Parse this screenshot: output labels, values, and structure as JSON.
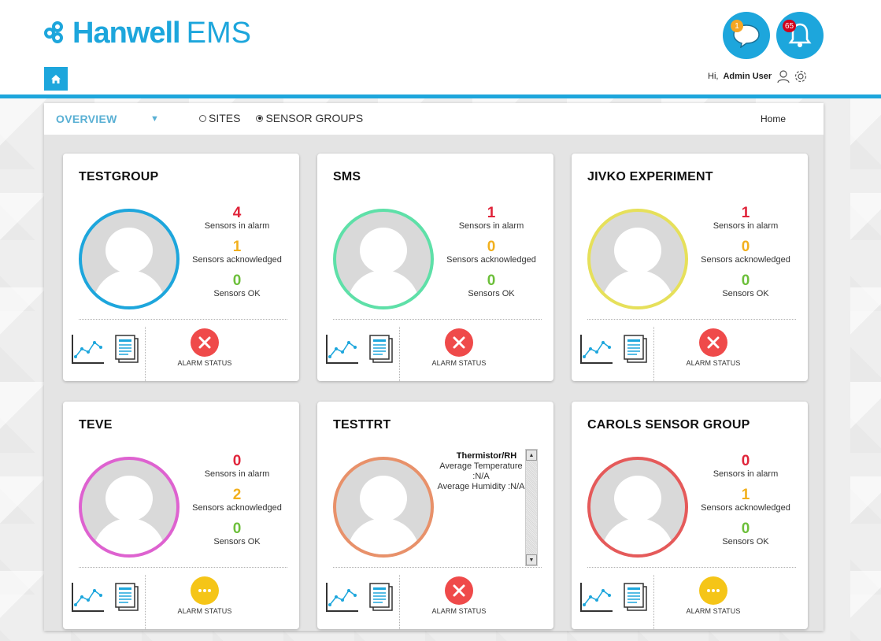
{
  "app": {
    "brand_bold": "Hanwell",
    "brand_light": "EMS"
  },
  "header": {
    "messages_count": "1",
    "alarms_count": "65",
    "greeting": "Hi,",
    "user_name": "Admin User"
  },
  "toolbar": {
    "overview_label": "OVERVIEW",
    "radio_sites": "SITES",
    "radio_sensor_groups": "SENSOR GROUPS",
    "selected_radio": "SENSOR GROUPS",
    "breadcrumb": "Home"
  },
  "labels": {
    "in_alarm": "Sensors in alarm",
    "acknowledged": "Sensors acknowledged",
    "ok": "Sensors OK",
    "alarm_status": "ALARM STATUS"
  },
  "colors": {
    "accent": "#1da6dc",
    "alarm_red": "#e0243a",
    "ack_yellow": "#f2b01d",
    "ok_green": "#6cbf3a"
  },
  "groups": [
    {
      "title": "TESTGROUP",
      "ring_color": "#1da6dc",
      "in_alarm": "4",
      "acknowledged": "1",
      "ok": "0",
      "alarm_status": "alarm",
      "status_icon": "close-icon"
    },
    {
      "title": "SMS",
      "ring_color": "#5ee0a8",
      "in_alarm": "1",
      "acknowledged": "0",
      "ok": "0",
      "alarm_status": "alarm",
      "status_icon": "close-icon"
    },
    {
      "title": "JIVKO EXPERIMENT",
      "ring_color": "#e6e05a",
      "in_alarm": "1",
      "acknowledged": "0",
      "ok": "0",
      "alarm_status": "alarm",
      "status_icon": "close-icon"
    },
    {
      "title": "TEVE",
      "ring_color": "#de62d0",
      "in_alarm": "0",
      "acknowledged": "2",
      "ok": "0",
      "alarm_status": "acknowledged",
      "status_icon": "more-icon"
    },
    {
      "title": "TESTTRT",
      "ring_color": "#e8916a",
      "info_title": "Thermistor/RH",
      "info_line1": "Average Temperature :N/A",
      "info_line2": "Average Humidity :N/A",
      "alarm_status": "alarm",
      "status_icon": "close-icon"
    },
    {
      "title": "CAROLS SENSOR GROUP",
      "ring_color": "#e55a5a",
      "in_alarm": "0",
      "acknowledged": "1",
      "ok": "0",
      "alarm_status": "acknowledged",
      "status_icon": "more-icon"
    }
  ]
}
